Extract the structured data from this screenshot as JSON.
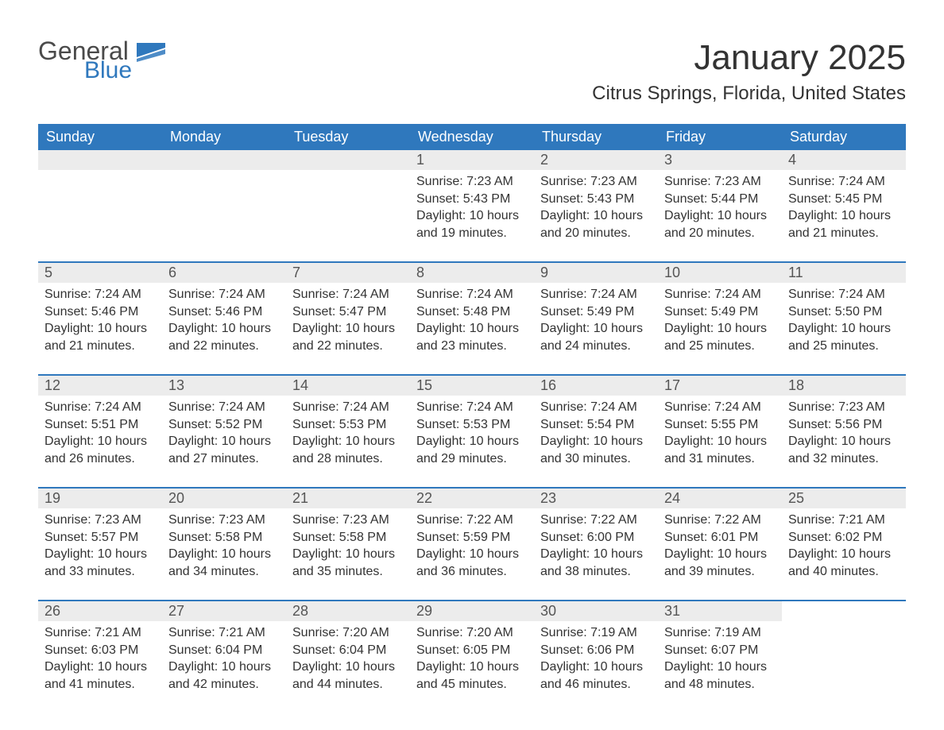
{
  "brand": {
    "general": "General",
    "blue": "Blue",
    "flag_color": "#2f78bd"
  },
  "title": "January 2025",
  "location": "Citrus Springs, Florida, United States",
  "header_bg": "#2f78bd",
  "header_fg": "#ffffff",
  "weekdays": [
    "Sunday",
    "Monday",
    "Tuesday",
    "Wednesday",
    "Thursday",
    "Friday",
    "Saturday"
  ],
  "weeks": [
    [
      {
        "day": "",
        "blank": true
      },
      {
        "day": "",
        "blank": true
      },
      {
        "day": "",
        "blank": true
      },
      {
        "day": "1",
        "sunrise": "7:23 AM",
        "sunset": "5:43 PM",
        "dl1": "Daylight: 10 hours",
        "dl2": "and 19 minutes."
      },
      {
        "day": "2",
        "sunrise": "7:23 AM",
        "sunset": "5:43 PM",
        "dl1": "Daylight: 10 hours",
        "dl2": "and 20 minutes."
      },
      {
        "day": "3",
        "sunrise": "7:23 AM",
        "sunset": "5:44 PM",
        "dl1": "Daylight: 10 hours",
        "dl2": "and 20 minutes."
      },
      {
        "day": "4",
        "sunrise": "7:24 AM",
        "sunset": "5:45 PM",
        "dl1": "Daylight: 10 hours",
        "dl2": "and 21 minutes."
      }
    ],
    [
      {
        "day": "5",
        "sunrise": "7:24 AM",
        "sunset": "5:46 PM",
        "dl1": "Daylight: 10 hours",
        "dl2": "and 21 minutes."
      },
      {
        "day": "6",
        "sunrise": "7:24 AM",
        "sunset": "5:46 PM",
        "dl1": "Daylight: 10 hours",
        "dl2": "and 22 minutes."
      },
      {
        "day": "7",
        "sunrise": "7:24 AM",
        "sunset": "5:47 PM",
        "dl1": "Daylight: 10 hours",
        "dl2": "and 22 minutes."
      },
      {
        "day": "8",
        "sunrise": "7:24 AM",
        "sunset": "5:48 PM",
        "dl1": "Daylight: 10 hours",
        "dl2": "and 23 minutes."
      },
      {
        "day": "9",
        "sunrise": "7:24 AM",
        "sunset": "5:49 PM",
        "dl1": "Daylight: 10 hours",
        "dl2": "and 24 minutes."
      },
      {
        "day": "10",
        "sunrise": "7:24 AM",
        "sunset": "5:49 PM",
        "dl1": "Daylight: 10 hours",
        "dl2": "and 25 minutes."
      },
      {
        "day": "11",
        "sunrise": "7:24 AM",
        "sunset": "5:50 PM",
        "dl1": "Daylight: 10 hours",
        "dl2": "and 25 minutes."
      }
    ],
    [
      {
        "day": "12",
        "sunrise": "7:24 AM",
        "sunset": "5:51 PM",
        "dl1": "Daylight: 10 hours",
        "dl2": "and 26 minutes."
      },
      {
        "day": "13",
        "sunrise": "7:24 AM",
        "sunset": "5:52 PM",
        "dl1": "Daylight: 10 hours",
        "dl2": "and 27 minutes."
      },
      {
        "day": "14",
        "sunrise": "7:24 AM",
        "sunset": "5:53 PM",
        "dl1": "Daylight: 10 hours",
        "dl2": "and 28 minutes."
      },
      {
        "day": "15",
        "sunrise": "7:24 AM",
        "sunset": "5:53 PM",
        "dl1": "Daylight: 10 hours",
        "dl2": "and 29 minutes."
      },
      {
        "day": "16",
        "sunrise": "7:24 AM",
        "sunset": "5:54 PM",
        "dl1": "Daylight: 10 hours",
        "dl2": "and 30 minutes."
      },
      {
        "day": "17",
        "sunrise": "7:24 AM",
        "sunset": "5:55 PM",
        "dl1": "Daylight: 10 hours",
        "dl2": "and 31 minutes."
      },
      {
        "day": "18",
        "sunrise": "7:23 AM",
        "sunset": "5:56 PM",
        "dl1": "Daylight: 10 hours",
        "dl2": "and 32 minutes."
      }
    ],
    [
      {
        "day": "19",
        "sunrise": "7:23 AM",
        "sunset": "5:57 PM",
        "dl1": "Daylight: 10 hours",
        "dl2": "and 33 minutes."
      },
      {
        "day": "20",
        "sunrise": "7:23 AM",
        "sunset": "5:58 PM",
        "dl1": "Daylight: 10 hours",
        "dl2": "and 34 minutes."
      },
      {
        "day": "21",
        "sunrise": "7:23 AM",
        "sunset": "5:58 PM",
        "dl1": "Daylight: 10 hours",
        "dl2": "and 35 minutes."
      },
      {
        "day": "22",
        "sunrise": "7:22 AM",
        "sunset": "5:59 PM",
        "dl1": "Daylight: 10 hours",
        "dl2": "and 36 minutes."
      },
      {
        "day": "23",
        "sunrise": "7:22 AM",
        "sunset": "6:00 PM",
        "dl1": "Daylight: 10 hours",
        "dl2": "and 38 minutes."
      },
      {
        "day": "24",
        "sunrise": "7:22 AM",
        "sunset": "6:01 PM",
        "dl1": "Daylight: 10 hours",
        "dl2": "and 39 minutes."
      },
      {
        "day": "25",
        "sunrise": "7:21 AM",
        "sunset": "6:02 PM",
        "dl1": "Daylight: 10 hours",
        "dl2": "and 40 minutes."
      }
    ],
    [
      {
        "day": "26",
        "sunrise": "7:21 AM",
        "sunset": "6:03 PM",
        "dl1": "Daylight: 10 hours",
        "dl2": "and 41 minutes."
      },
      {
        "day": "27",
        "sunrise": "7:21 AM",
        "sunset": "6:04 PM",
        "dl1": "Daylight: 10 hours",
        "dl2": "and 42 minutes."
      },
      {
        "day": "28",
        "sunrise": "7:20 AM",
        "sunset": "6:04 PM",
        "dl1": "Daylight: 10 hours",
        "dl2": "and 44 minutes."
      },
      {
        "day": "29",
        "sunrise": "7:20 AM",
        "sunset": "6:05 PM",
        "dl1": "Daylight: 10 hours",
        "dl2": "and 45 minutes."
      },
      {
        "day": "30",
        "sunrise": "7:19 AM",
        "sunset": "6:06 PM",
        "dl1": "Daylight: 10 hours",
        "dl2": "and 46 minutes."
      },
      {
        "day": "31",
        "sunrise": "7:19 AM",
        "sunset": "6:07 PM",
        "dl1": "Daylight: 10 hours",
        "dl2": "and 48 minutes."
      },
      {
        "day": "",
        "blank": true,
        "trailing": true
      }
    ]
  ],
  "labels": {
    "sunrise": "Sunrise: ",
    "sunset": "Sunset: "
  }
}
